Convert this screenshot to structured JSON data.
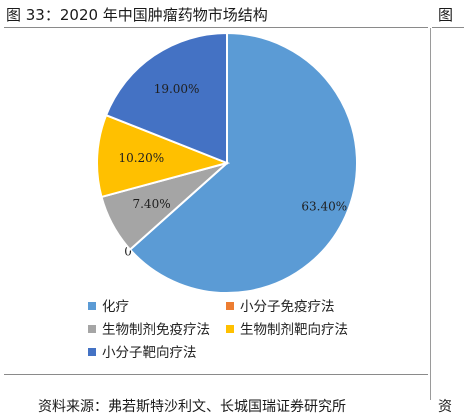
{
  "title": "图 33：2020 年中国肿瘤药物市场结构",
  "side_title": "图",
  "source": "资料来源：弗若斯特沙利文、长城国瑞证券研究所",
  "side_source": "资",
  "chart_data": {
    "type": "pie",
    "slices": [
      {
        "name": "化疗",
        "value": 63.4,
        "label": "63.40%",
        "color": "#5b9bd5"
      },
      {
        "name": "小分子免疫疗法",
        "value": 0,
        "label": "0",
        "color": "#ed7d31"
      },
      {
        "name": "生物制剂免疫疗法",
        "value": 7.4,
        "label": "7.40%",
        "color": "#a5a5a5"
      },
      {
        "name": "生物制剂靶向疗法",
        "value": 10.2,
        "label": "10.20%",
        "color": "#ffc000"
      },
      {
        "name": "小分子靶向疗法",
        "value": 19.0,
        "label": "19.00%",
        "color": "#4472c4"
      }
    ],
    "legend_position": "bottom"
  }
}
